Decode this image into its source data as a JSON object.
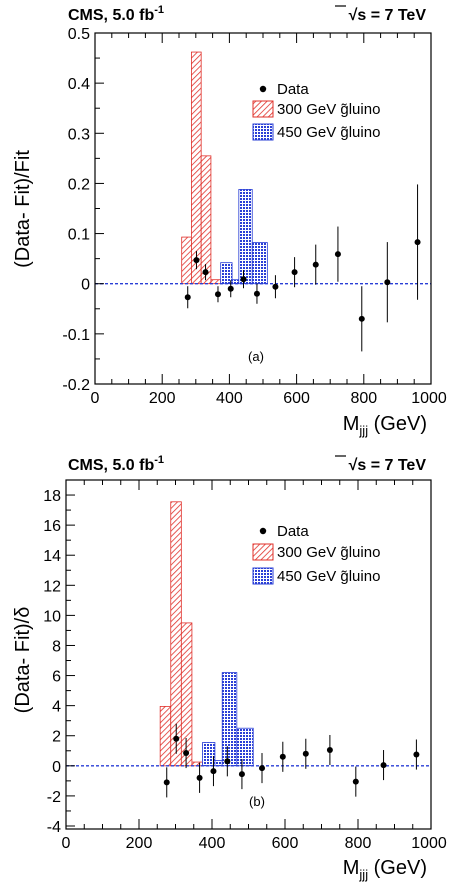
{
  "chart_data": [
    {
      "type": "bar",
      "panel_label": "(a)",
      "header_left": "CMS, 5.0 fb",
      "header_left_sup": "-1",
      "header_right_sqrt": "√",
      "header_right_s": "s",
      "header_right_rest": " = 7 TeV",
      "ylabel": "(Data- Fit)/Fit",
      "xlabel_main": "M",
      "xlabel_sub": "jjj",
      "xlabel_unit": " (GeV)",
      "xlim": [
        0,
        1000
      ],
      "ylim": [
        -0.2,
        0.5
      ],
      "xticks": [
        0,
        200,
        400,
        600,
        800,
        1000
      ],
      "xtick_labels": [
        "0",
        "200",
        "400",
        "600",
        "800",
        "1000"
      ],
      "yticks": [
        -0.2,
        -0.1,
        0,
        0.1,
        0.2,
        0.3,
        0.4,
        0.5
      ],
      "ytick_labels": [
        "-0.2",
        "-0.1",
        "0",
        "0.1",
        "0.2",
        "0.3",
        "0.4",
        "0.5"
      ],
      "legend": {
        "position": "top-right",
        "entries": [
          "Data",
          "300 GeV g̃luino",
          "450 GeV g̃luino"
        ]
      },
      "series": [
        {
          "name": "Data",
          "x": [
            276,
            302,
            329,
            366,
            404,
            442,
            482,
            537,
            594,
            657,
            723,
            794,
            870,
            960
          ],
          "y": [
            -0.027,
            0.047,
            0.023,
            -0.021,
            -0.01,
            0.009,
            -0.02,
            -0.006,
            0.023,
            0.038,
            0.059,
            -0.07,
            0.003,
            0.083
          ],
          "err": [
            0.022,
            0.018,
            0.016,
            0.016,
            0.017,
            0.018,
            0.02,
            0.023,
            0.03,
            0.04,
            0.055,
            0.065,
            0.08,
            0.115
          ]
        },
        {
          "name": "300 GeV g̃luino",
          "bins": [
            [
              258,
              287
            ],
            [
              287,
              316
            ],
            [
              316,
              345
            ],
            [
              345,
              374
            ]
          ],
          "values": [
            0.093,
            0.462,
            0.255,
            0.008
          ]
        },
        {
          "name": "450 GeV g̃luino",
          "bins": [
            [
              374,
              408
            ],
            [
              408,
              428
            ],
            [
              428,
              468
            ],
            [
              468,
              513
            ]
          ],
          "values": [
            0.042,
            0.008,
            0.188,
            0.082
          ]
        }
      ]
    },
    {
      "type": "bar",
      "panel_label": "(b)",
      "header_left": "CMS, 5.0 fb",
      "header_left_sup": "-1",
      "header_right_sqrt": "√",
      "header_right_s": "s",
      "header_right_rest": " = 7 TeV",
      "ylabel": "(Data- Fit)/δ",
      "xlabel_main": "M",
      "xlabel_sub": "jjj",
      "xlabel_unit": " (GeV)",
      "xlim": [
        0,
        1000
      ],
      "ylim": [
        -4.2,
        19
      ],
      "xticks": [
        0,
        200,
        400,
        600,
        800,
        1000
      ],
      "xtick_labels": [
        "0",
        "200",
        "400",
        "600",
        "800",
        "1000"
      ],
      "yticks": [
        -4,
        -2,
        0,
        2,
        4,
        6,
        8,
        10,
        12,
        14,
        16,
        18
      ],
      "ytick_labels": [
        "-4",
        "-2",
        "0",
        "2",
        "4",
        "6",
        "8",
        "10",
        "12",
        "14",
        "16",
        "18"
      ],
      "legend": {
        "position": "top-right",
        "entries": [
          "Data",
          "300 GeV g̃luino",
          "450 GeV g̃luino"
        ]
      },
      "series": [
        {
          "name": "Data",
          "x": [
            276,
            302,
            329,
            366,
            404,
            442,
            482,
            537,
            594,
            657,
            723,
            794,
            870,
            960
          ],
          "y": [
            -1.1,
            1.8,
            0.85,
            -0.8,
            -0.35,
            0.3,
            -0.55,
            -0.15,
            0.6,
            0.8,
            1.05,
            -1.05,
            0.05,
            0.75
          ],
          "err": [
            1.0,
            1.0,
            1.0,
            1.0,
            1.0,
            1.0,
            1.0,
            1.0,
            1.0,
            1.0,
            1.0,
            1.0,
            1.0,
            1.0
          ]
        },
        {
          "name": "300 GeV g̃luino",
          "bins": [
            [
              258,
              287
            ],
            [
              287,
              316
            ],
            [
              316,
              345
            ],
            [
              345,
              374
            ]
          ],
          "values": [
            3.95,
            17.55,
            9.5,
            0.25
          ]
        },
        {
          "name": "450 GeV g̃luino",
          "bins": [
            [
              374,
              408
            ],
            [
              408,
              428
            ],
            [
              428,
              468
            ],
            [
              468,
              513
            ]
          ],
          "values": [
            1.55,
            0.35,
            6.2,
            2.5
          ]
        }
      ]
    }
  ]
}
